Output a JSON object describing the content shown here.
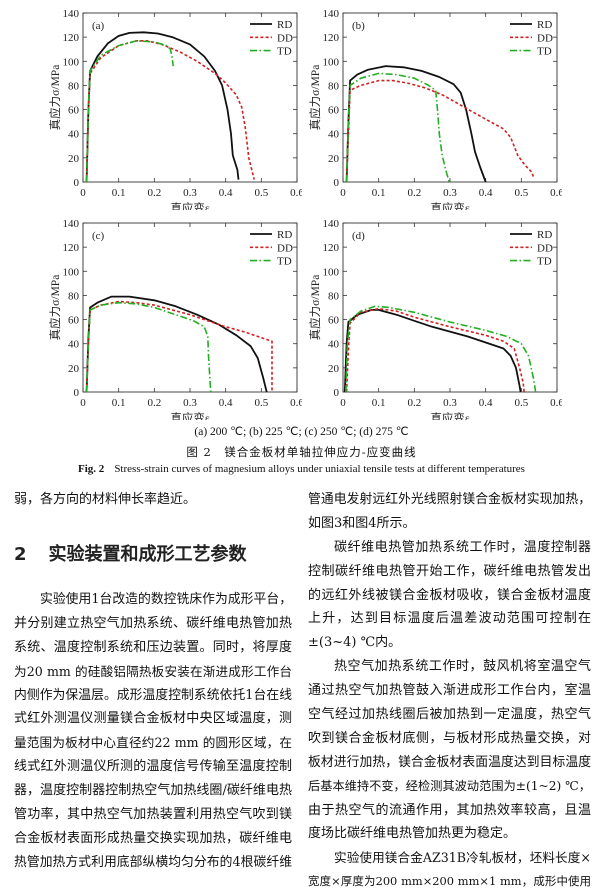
{
  "colors": {
    "RD": "#111111",
    "DD": "#d42020",
    "TD": "#22b022"
  },
  "chart_data": [
    {
      "type": "line",
      "panel": "(a)",
      "xlabel": "真应变ε",
      "ylabel": "真应力σ/MPa",
      "xlim": [
        0,
        0.6
      ],
      "ylim": [
        0,
        140
      ],
      "xticks": [
        "0",
        "0.1",
        "0.2",
        "0.3",
        "0.4",
        "0.5",
        "0.6"
      ],
      "yticks": [
        "0",
        "20",
        "40",
        "60",
        "80",
        "100",
        "120",
        "140"
      ],
      "legend": "top-right",
      "series": [
        {
          "name": "RD",
          "points": [
            [
              0.01,
              0
            ],
            [
              0.015,
              60
            ],
            [
              0.02,
              92
            ],
            [
              0.04,
              104
            ],
            [
              0.07,
              115
            ],
            [
              0.1,
              121
            ],
            [
              0.13,
              123.5
            ],
            [
              0.17,
              124
            ],
            [
              0.21,
              123
            ],
            [
              0.25,
              120
            ],
            [
              0.3,
              114
            ],
            [
              0.34,
              104
            ],
            [
              0.37,
              92
            ],
            [
              0.39,
              80
            ],
            [
              0.405,
              60
            ],
            [
              0.415,
              40
            ],
            [
              0.42,
              22
            ],
            [
              0.433,
              10
            ],
            [
              0.436,
              2
            ]
          ]
        },
        {
          "name": "DD",
          "points": [
            [
              0.01,
              0
            ],
            [
              0.015,
              60
            ],
            [
              0.02,
              90
            ],
            [
              0.05,
              103
            ],
            [
              0.1,
              113
            ],
            [
              0.15,
              117
            ],
            [
              0.18,
              117
            ],
            [
              0.22,
              114
            ],
            [
              0.27,
              108
            ],
            [
              0.32,
              100
            ],
            [
              0.37,
              90
            ],
            [
              0.4,
              82
            ],
            [
              0.43,
              72
            ],
            [
              0.445,
              62
            ],
            [
              0.455,
              45
            ],
            [
              0.465,
              20
            ],
            [
              0.48,
              2
            ]
          ]
        },
        {
          "name": "TD",
          "points": [
            [
              0.01,
              0
            ],
            [
              0.015,
              60
            ],
            [
              0.02,
              92
            ],
            [
              0.05,
              105
            ],
            [
              0.1,
              113
            ],
            [
              0.15,
              117
            ],
            [
              0.2,
              116
            ],
            [
              0.235,
              113
            ],
            [
              0.245,
              110
            ],
            [
              0.25,
              103
            ],
            [
              0.253,
              96
            ]
          ]
        }
      ]
    },
    {
      "type": "line",
      "panel": "(b)",
      "xlabel": "真应变ε",
      "ylabel": "真应力σ/MPa",
      "xlim": [
        0,
        0.6
      ],
      "ylim": [
        0,
        140
      ],
      "xticks": [
        "0",
        "0.1",
        "0.2",
        "0.3",
        "0.4",
        "0.5",
        "0.6"
      ],
      "yticks": [
        "0",
        "20",
        "40",
        "60",
        "80",
        "100",
        "120",
        "140"
      ],
      "legend": "top-right",
      "series": [
        {
          "name": "RD",
          "points": [
            [
              0.01,
              0
            ],
            [
              0.015,
              50
            ],
            [
              0.02,
              84
            ],
            [
              0.04,
              89
            ],
            [
              0.07,
              93
            ],
            [
              0.12,
              96
            ],
            [
              0.17,
              95
            ],
            [
              0.22,
              92
            ],
            [
              0.27,
              87
            ],
            [
              0.31,
              81
            ],
            [
              0.33,
              74
            ],
            [
              0.345,
              60
            ],
            [
              0.36,
              40
            ],
            [
              0.37,
              25
            ],
            [
              0.385,
              12
            ],
            [
              0.4,
              0
            ]
          ]
        },
        {
          "name": "DD",
          "points": [
            [
              0.01,
              0
            ],
            [
              0.015,
              40
            ],
            [
              0.02,
              76
            ],
            [
              0.05,
              80
            ],
            [
              0.1,
              84
            ],
            [
              0.14,
              84
            ],
            [
              0.18,
              82
            ],
            [
              0.23,
              78
            ],
            [
              0.28,
              72
            ],
            [
              0.34,
              62
            ],
            [
              0.4,
              52
            ],
            [
              0.45,
              44
            ],
            [
              0.47,
              37
            ],
            [
              0.49,
              22
            ],
            [
              0.51,
              14
            ],
            [
              0.53,
              8
            ],
            [
              0.535,
              3
            ]
          ]
        },
        {
          "name": "TD",
          "points": [
            [
              0.01,
              0
            ],
            [
              0.015,
              50
            ],
            [
              0.02,
              80
            ],
            [
              0.05,
              86
            ],
            [
              0.1,
              90
            ],
            [
              0.15,
              89
            ],
            [
              0.2,
              86
            ],
            [
              0.24,
              80
            ],
            [
              0.26,
              76
            ],
            [
              0.265,
              60
            ],
            [
              0.27,
              40
            ],
            [
              0.278,
              22
            ],
            [
              0.29,
              8
            ],
            [
              0.298,
              0
            ]
          ]
        }
      ]
    },
    {
      "type": "line",
      "panel": "(c)",
      "xlabel": "真应变ε",
      "ylabel": "真应力σ/MPa",
      "xlim": [
        0,
        0.6
      ],
      "ylim": [
        0,
        140
      ],
      "xticks": [
        "0",
        "0.1",
        "0.2",
        "0.3",
        "0.4",
        "0.5",
        "0.6"
      ],
      "yticks": [
        "0",
        "20",
        "40",
        "60",
        "80",
        "100",
        "120",
        "140"
      ],
      "legend": "top-right",
      "series": [
        {
          "name": "RD",
          "points": [
            [
              0.01,
              0
            ],
            [
              0.015,
              45
            ],
            [
              0.02,
              70
            ],
            [
              0.04,
              74
            ],
            [
              0.08,
              79
            ],
            [
              0.13,
              79
            ],
            [
              0.2,
              76
            ],
            [
              0.26,
              71
            ],
            [
              0.32,
              64
            ],
            [
              0.38,
              56
            ],
            [
              0.43,
              47
            ],
            [
              0.47,
              38
            ],
            [
              0.49,
              28
            ],
            [
              0.505,
              12
            ],
            [
              0.515,
              0
            ]
          ]
        },
        {
          "name": "DD",
          "points": [
            [
              0.01,
              0
            ],
            [
              0.015,
              40
            ],
            [
              0.02,
              68
            ],
            [
              0.05,
              72
            ],
            [
              0.1,
              75
            ],
            [
              0.15,
              74
            ],
            [
              0.2,
              72
            ],
            [
              0.3,
              64
            ],
            [
              0.35,
              59
            ],
            [
              0.4,
              54
            ],
            [
              0.45,
              50
            ],
            [
              0.53,
              42
            ],
            [
              0.53,
              0
            ]
          ]
        },
        {
          "name": "TD",
          "points": [
            [
              0.01,
              0
            ],
            [
              0.015,
              40
            ],
            [
              0.02,
              68
            ],
            [
              0.05,
              72
            ],
            [
              0.1,
              74
            ],
            [
              0.15,
              73
            ],
            [
              0.2,
              70
            ],
            [
              0.26,
              64
            ],
            [
              0.31,
              59
            ],
            [
              0.34,
              54
            ],
            [
              0.35,
              46
            ],
            [
              0.352,
              30
            ],
            [
              0.358,
              0
            ]
          ]
        }
      ]
    },
    {
      "type": "line",
      "panel": "(d)",
      "xlabel": "真应变ε",
      "ylabel": "真应力σ/MPa",
      "xlim": [
        0,
        0.6
      ],
      "ylim": [
        0,
        140
      ],
      "xticks": [
        "0",
        "0.1",
        "0.2",
        "0.3",
        "0.4",
        "0.5",
        "0.6"
      ],
      "yticks": [
        "0",
        "20",
        "40",
        "60",
        "80",
        "100",
        "120",
        "140"
      ],
      "legend": "top-right",
      "series": [
        {
          "name": "RD",
          "points": [
            [
              0.005,
              0
            ],
            [
              0.01,
              40
            ],
            [
              0.015,
              58
            ],
            [
              0.04,
              64
            ],
            [
              0.08,
              68
            ],
            [
              0.1,
              68
            ],
            [
              0.15,
              64
            ],
            [
              0.2,
              59
            ],
            [
              0.25,
              54
            ],
            [
              0.3,
              50
            ],
            [
              0.35,
              46
            ],
            [
              0.4,
              41
            ],
            [
              0.45,
              36
            ],
            [
              0.47,
              30
            ],
            [
              0.485,
              20
            ],
            [
              0.495,
              5
            ],
            [
              0.498,
              0
            ]
          ]
        },
        {
          "name": "DD",
          "points": [
            [
              0.01,
              0
            ],
            [
              0.015,
              35
            ],
            [
              0.02,
              57
            ],
            [
              0.05,
              66
            ],
            [
              0.1,
              69
            ],
            [
              0.15,
              67
            ],
            [
              0.2,
              62
            ],
            [
              0.3,
              54
            ],
            [
              0.4,
              47
            ],
            [
              0.45,
              42
            ],
            [
              0.48,
              36
            ],
            [
              0.495,
              20
            ],
            [
              0.505,
              8
            ],
            [
              0.508,
              0
            ]
          ]
        },
        {
          "name": "TD",
          "points": [
            [
              0.008,
              0
            ],
            [
              0.012,
              40
            ],
            [
              0.02,
              60
            ],
            [
              0.05,
              67
            ],
            [
              0.09,
              71
            ],
            [
              0.13,
              70
            ],
            [
              0.2,
              66
            ],
            [
              0.3,
              58
            ],
            [
              0.4,
              51
            ],
            [
              0.46,
              46
            ],
            [
              0.5,
              40
            ],
            [
              0.52,
              30
            ],
            [
              0.535,
              10
            ],
            [
              0.54,
              0
            ]
          ]
        }
      ]
    }
  ],
  "figure": {
    "subcaption": "(a) 200 ℃; (b) 225 ℃; (c) 250 ℃; (d) 275 ℃",
    "caption_cn": "图 2　镁合金板材单轴拉伸应力-应变曲线",
    "caption_en_label": "Fig. 2",
    "caption_en": "Stress-strain curves of magnesium alloys under uniaxial tensile tests at different temperatures"
  },
  "section": {
    "number": "2",
    "title": "实验装置和成形工艺参数"
  },
  "left_column": {
    "top_line": "弱，各方向的材料伸长率趋近。",
    "para": [
      "实验使用1台改造的数控铣床作为成形平台，",
      "并分别建立热空气加热系统、碳纤维电热管加热",
      "系统、温度控制系统和压边装置。同时，将厚度",
      "为20 mm 的硅酸铝隔热板安装在渐进成形工作台",
      "内侧作为保温层。成形温度控制系统依托1台在线",
      "式红外测温仪测量镁合金板材中央区域温度，测",
      "量范围为板材中心直径约22 mm 的圆形区域，在",
      "线式红外测温仪所测的温度信号传输至温度控制",
      "器，温度控制器控制热空气加热线圈/碳纤维电热",
      "管功率，其中热空气加热装置利用热空气吹到镁",
      "合金板材表面形成热量交换实现加热，碳纤维电",
      "热管加热方式利用底部纵横均匀分布的4根碳纤维"
    ]
  },
  "right_column": {
    "lines": [
      "管通电发射远红外光线照射镁合金板材实现加热，",
      "如图3和图4所示。",
      "碳纤维电热管加热系统工作时，温度控制器",
      "控制碳纤维电热管开始工作，碳纤维电热管发出",
      "的远红外线被镁合金板材吸收，镁合金板材温度",
      "上升，达到目标温度后温差波动范围可控制在",
      "±(3~4) ℃内。",
      "热空气加热系统工作时，鼓风机将室温空气",
      "通过热空气加热管鼓入渐进成形工作台内，室温",
      "空气经过加热线圈后被加热到一定温度，热空气",
      "吹到镁合金板材底侧，与板材形成热量交换，对",
      "板材进行加热，镁合金板材表面温度达到目标温度",
      "后基本维持不变，经检测其波动范围为±(1~2) ℃，",
      "由于热空气的流通作用，其加热效率较高，且温",
      "度场比碳纤维电热管加热更为稳定。",
      "实验使用镁合金AZ31B冷轧板材，坯料长度×",
      "宽度×厚度为200 mm×200 mm×1 mm，成形中使用"
    ]
  }
}
